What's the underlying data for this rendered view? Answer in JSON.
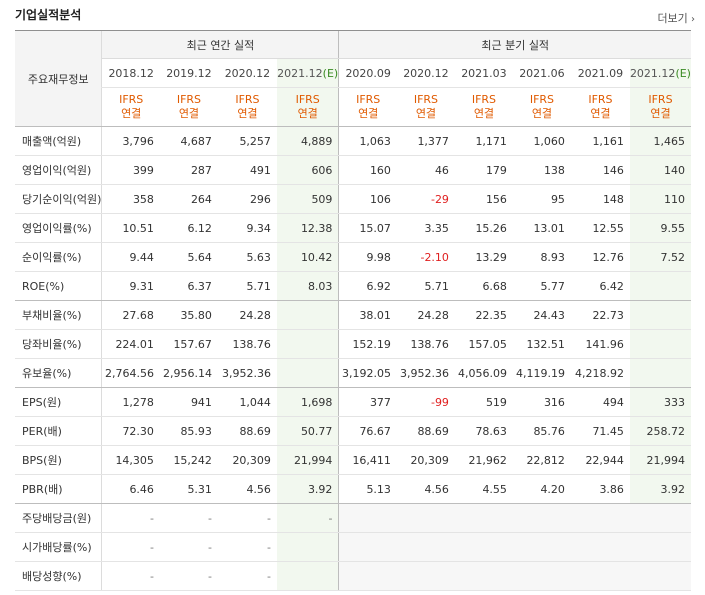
{
  "title": "기업실적분석",
  "more_label": "더보기",
  "header": {
    "row_label": "주요재무정보",
    "annual_title": "최근 연간 실적",
    "quarter_title": "최근 분기 실적",
    "periods_annual": [
      "2018.12",
      "2019.12",
      "2020.12",
      "2021.12"
    ],
    "periods_quarter": [
      "2020.09",
      "2020.12",
      "2021.03",
      "2021.06",
      "2021.09",
      "2021.12"
    ],
    "est_mark": "(E)",
    "ifrs_line1": "IFRS",
    "ifrs_line2": "연결"
  },
  "rows": [
    {
      "label": "매출액(억원)",
      "annual": [
        "3,796",
        "4,687",
        "5,257",
        "4,889"
      ],
      "quarter": [
        "1,063",
        "1,377",
        "1,171",
        "1,060",
        "1,161",
        "1,465"
      ]
    },
    {
      "label": "영업이익(억원)",
      "annual": [
        "399",
        "287",
        "491",
        "606"
      ],
      "quarter": [
        "160",
        "46",
        "179",
        "138",
        "146",
        "140"
      ]
    },
    {
      "label": "당기순이익(억원)",
      "annual": [
        "358",
        "264",
        "296",
        "509"
      ],
      "quarter": [
        "106",
        "-29",
        "156",
        "95",
        "148",
        "110"
      ]
    },
    {
      "label": "영업이익률(%)",
      "annual": [
        "10.51",
        "6.12",
        "9.34",
        "12.38"
      ],
      "quarter": [
        "15.07",
        "3.35",
        "15.26",
        "13.01",
        "12.55",
        "9.55"
      ]
    },
    {
      "label": "순이익률(%)",
      "annual": [
        "9.44",
        "5.64",
        "5.63",
        "10.42"
      ],
      "quarter": [
        "9.98",
        "-2.10",
        "13.29",
        "8.93",
        "12.76",
        "7.52"
      ]
    },
    {
      "label": "ROE(%)",
      "annual": [
        "9.31",
        "6.37",
        "5.71",
        "8.03"
      ],
      "quarter": [
        "6.92",
        "5.71",
        "6.68",
        "5.77",
        "6.42",
        ""
      ]
    },
    {
      "label": "부채비율(%)",
      "annual": [
        "27.68",
        "35.80",
        "24.28",
        ""
      ],
      "quarter": [
        "38.01",
        "24.28",
        "22.35",
        "24.43",
        "22.73",
        ""
      ]
    },
    {
      "label": "당좌비율(%)",
      "annual": [
        "224.01",
        "157.67",
        "138.76",
        ""
      ],
      "quarter": [
        "152.19",
        "138.76",
        "157.05",
        "132.51",
        "141.96",
        ""
      ]
    },
    {
      "label": "유보율(%)",
      "annual": [
        "2,764.56",
        "2,956.14",
        "3,952.36",
        ""
      ],
      "quarter": [
        "3,192.05",
        "3,952.36",
        "4,056.09",
        "4,119.19",
        "4,218.92",
        ""
      ]
    },
    {
      "label": "EPS(원)",
      "annual": [
        "1,278",
        "941",
        "1,044",
        "1,698"
      ],
      "quarter": [
        "377",
        "-99",
        "519",
        "316",
        "494",
        "333"
      ]
    },
    {
      "label": "PER(배)",
      "annual": [
        "72.30",
        "85.93",
        "88.69",
        "50.77"
      ],
      "quarter": [
        "76.67",
        "88.69",
        "78.63",
        "85.76",
        "71.45",
        "258.72"
      ]
    },
    {
      "label": "BPS(원)",
      "annual": [
        "14,305",
        "15,242",
        "20,309",
        "21,994"
      ],
      "quarter": [
        "16,411",
        "20,309",
        "21,962",
        "22,812",
        "22,944",
        "21,994"
      ]
    },
    {
      "label": "PBR(배)",
      "annual": [
        "6.46",
        "5.31",
        "4.56",
        "3.92"
      ],
      "quarter": [
        "5.13",
        "4.56",
        "4.55",
        "4.20",
        "3.86",
        "3.92"
      ]
    },
    {
      "label": "주당배당금(원)",
      "annual": [
        "-",
        "-",
        "-",
        "-"
      ],
      "quarter": [
        "",
        "",
        "",
        "",
        "",
        ""
      ]
    },
    {
      "label": "시가배당률(%)",
      "annual": [
        "-",
        "-",
        "-",
        ""
      ],
      "quarter": [
        "",
        "",
        "",
        "",
        "",
        ""
      ]
    },
    {
      "label": "배당성향(%)",
      "annual": [
        "-",
        "-",
        "-",
        ""
      ],
      "quarter": [
        "",
        "",
        "",
        "",
        "",
        ""
      ]
    }
  ]
}
